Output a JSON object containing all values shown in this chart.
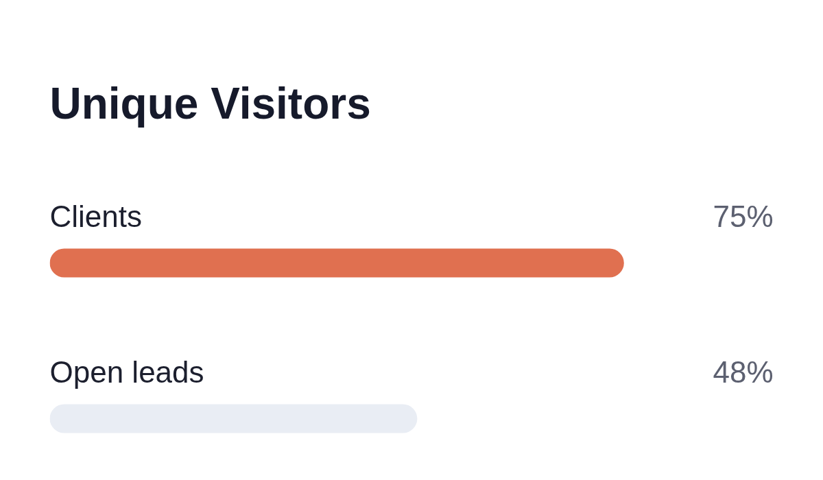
{
  "chart_data": {
    "type": "bar",
    "orientation": "horizontal",
    "title": "Unique Visitors",
    "categories": [
      "Clients",
      "Open leads"
    ],
    "values": [
      75,
      48
    ],
    "colors": [
      "#e07050",
      "#e9edf4"
    ],
    "value_labels": [
      "75%",
      "48%"
    ],
    "tick_labels": false,
    "grid": false
  }
}
